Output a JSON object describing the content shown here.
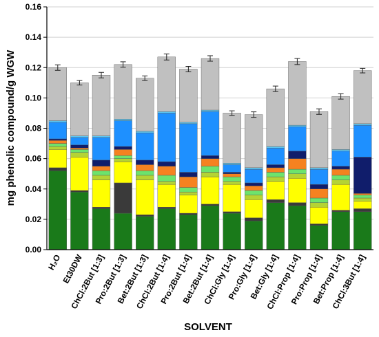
{
  "chart_data": {
    "type": "stacked_bar",
    "categories": [
      "H₂O",
      "Et30DW",
      "ChCl:2But [1:3]",
      "Pro:2But [1:3]",
      "Bet:2But [1:3]",
      "ChCl:2But [1:4]",
      "Pro:2But [1:4]",
      "Bet:2But [1:4]",
      "ChCl:Gly [1:4]",
      "Pro:Gly [1:4]",
      "Bet:Gly [1:4]",
      "ChCl:Prop [1:4]",
      "Pro:Prop [1:4]",
      "Bet:Prop [1:4]",
      "ChCl:3But [1:4]"
    ],
    "series": [
      {
        "color": "#1a7a1a",
        "values": [
          0.052,
          0.038,
          0.027,
          0.024,
          0.022,
          0.027,
          0.023,
          0.029,
          0.024,
          0.019,
          0.031,
          0.029,
          0.016,
          0.025,
          0.025
        ]
      },
      {
        "color": "#3a3a3a",
        "values": [
          0.002,
          0.001,
          0.001,
          0.02,
          0.001,
          0.001,
          0.001,
          0.001,
          0.001,
          0.002,
          0.002,
          0.002,
          0.001,
          0.001,
          0.002
        ]
      },
      {
        "color": "#ffff00",
        "values": [
          0.012,
          0.022,
          0.018,
          0.014,
          0.023,
          0.015,
          0.012,
          0.018,
          0.018,
          0.012,
          0.012,
          0.016,
          0.011,
          0.017,
          0.005
        ]
      },
      {
        "color": "#b5d334",
        "values": [
          0.002,
          0.003,
          0.003,
          0.002,
          0.003,
          0.002,
          0.002,
          0.003,
          0.002,
          0.003,
          0.003,
          0.003,
          0.003,
          0.003,
          0.002
        ]
      },
      {
        "color": "#6de36d",
        "values": [
          0.002,
          0.002,
          0.003,
          0.002,
          0.003,
          0.004,
          0.003,
          0.004,
          0.003,
          0.003,
          0.003,
          0.003,
          0.003,
          0.003,
          0.002
        ]
      },
      {
        "color": "#f58220",
        "values": [
          0.002,
          0.001,
          0.003,
          0.004,
          0.004,
          0.006,
          0.007,
          0.005,
          0.002,
          0.003,
          0.003,
          0.007,
          0.006,
          0.004,
          0.001
        ]
      },
      {
        "color": "#101d6b",
        "values": [
          0.001,
          0.002,
          0.004,
          0.002,
          0.003,
          0.003,
          0.003,
          0.002,
          0.001,
          0.002,
          0.002,
          0.005,
          0.003,
          0.002,
          0.024
        ]
      },
      {
        "color": "#1e90ff",
        "values": [
          0.011,
          0.005,
          0.015,
          0.017,
          0.018,
          0.032,
          0.032,
          0.029,
          0.005,
          0.009,
          0.011,
          0.016,
          0.01,
          0.01,
          0.021
        ]
      },
      {
        "color": "#5cc8f5",
        "values": [
          0.001,
          0.001,
          0.001,
          0.001,
          0.001,
          0.001,
          0.001,
          0.001,
          0.001,
          0.001,
          0.001,
          0.001,
          0.001,
          0.001,
          0.001
        ]
      },
      {
        "color": "#c0c0c0",
        "values": [
          0.035,
          0.035,
          0.04,
          0.036,
          0.035,
          0.036,
          0.035,
          0.034,
          0.033,
          0.035,
          0.038,
          0.042,
          0.037,
          0.035,
          0.035
        ],
        "errors": [
          0.0018,
          0.0015,
          0.0018,
          0.0018,
          0.0015,
          0.002,
          0.0018,
          0.0018,
          0.0015,
          0.0018,
          0.0018,
          0.002,
          0.0018,
          0.0018,
          0.0015
        ]
      }
    ],
    "ylim": [
      0,
      0.16
    ],
    "yticks": [
      {
        "value": 0,
        "label": "0.00"
      },
      {
        "value": 0.02,
        "label": "0.02"
      },
      {
        "value": 0.04,
        "label": "0.04"
      },
      {
        "value": 0.06,
        "label": "0.06"
      },
      {
        "value": 0.08,
        "label": "0.08"
      },
      {
        "value": 0.1,
        "label": "0.10"
      },
      {
        "value": 0.12,
        "label": "0.12"
      },
      {
        "value": 0.14,
        "label": "0.14"
      },
      {
        "value": 0.16,
        "label": "0.16"
      }
    ],
    "ylabel": "mg phenolic compound/g WGW",
    "xlabel": "SOLVENT",
    "grid": true
  }
}
